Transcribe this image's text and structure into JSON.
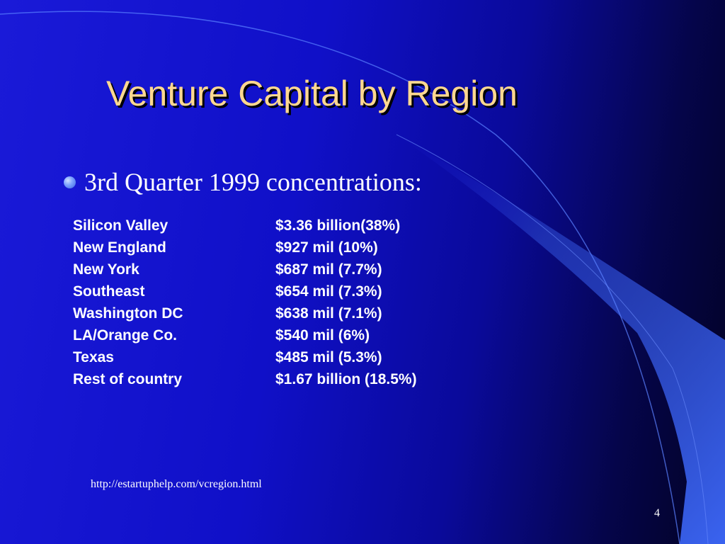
{
  "slide": {
    "title": "Venture Capital by Region",
    "bullet": "3rd Quarter 1999 concentrations:",
    "regions": [
      {
        "name": "Silicon Valley",
        "amount": "$3.36 billion(38%)"
      },
      {
        "name": "New England",
        "amount": "$927 mil (10%)"
      },
      {
        "name": "New York",
        "amount": "$687 mil (7.7%)"
      },
      {
        "name": "Southeast",
        "amount": "$654 mil (7.3%)"
      },
      {
        "name": "Washington DC",
        "amount": "$638 mil (7.1%)"
      },
      {
        "name": "LA/Orange Co.",
        "amount": "$540 mil (6%)"
      },
      {
        "name": "Texas",
        "amount": "$485 mil (5.3%)"
      },
      {
        "name": "Rest of country",
        "amount": "$1.67 billion (18.5%)"
      }
    ],
    "source_url": "http://estartuphelp.com/vcregion.html",
    "page_number": "4"
  },
  "colors": {
    "title": "#ffd890",
    "text": "#ffffff",
    "accent": "#3a63e0"
  }
}
